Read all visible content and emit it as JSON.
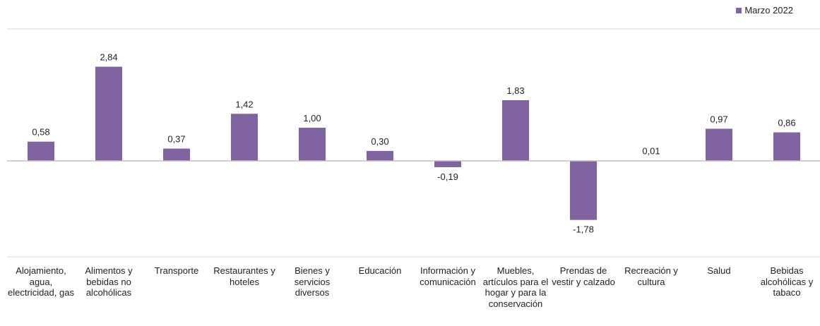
{
  "chart_data": {
    "type": "bar",
    "categories": [
      "Alojamiento, agua, electricidad, gas",
      "Alimentos y bebidas no alcohólicas",
      "Transporte",
      "Restaurantes y hoteles",
      "Bienes y servicios diversos",
      "Educación",
      "Información y comunicación",
      "Muebles, artículos para el hogar y para la conservación",
      "Prendas de vestir y calzado",
      "Recreación y cultura",
      "Salud",
      "Bebidas alcohólicas y tabaco"
    ],
    "series": [
      {
        "name": "Marzo 2022",
        "values": [
          0.58,
          2.84,
          0.37,
          1.42,
          1.0,
          0.3,
          -0.19,
          1.83,
          -1.78,
          0.01,
          0.97,
          0.86
        ],
        "labels": [
          "0,58",
          "2,84",
          "0,37",
          "1,42",
          "1,00",
          "0,30",
          "-0,19",
          "1,83",
          "-1,78",
          "0,01",
          "0,97",
          "0,86"
        ]
      }
    ],
    "ylim": [
      -2.9,
      4.0
    ],
    "grid": false,
    "legend_position": "top-right",
    "colors": {
      "bar": "#8064a2",
      "axis": "#bfbfbf",
      "frame": "#d9d9d9"
    }
  }
}
